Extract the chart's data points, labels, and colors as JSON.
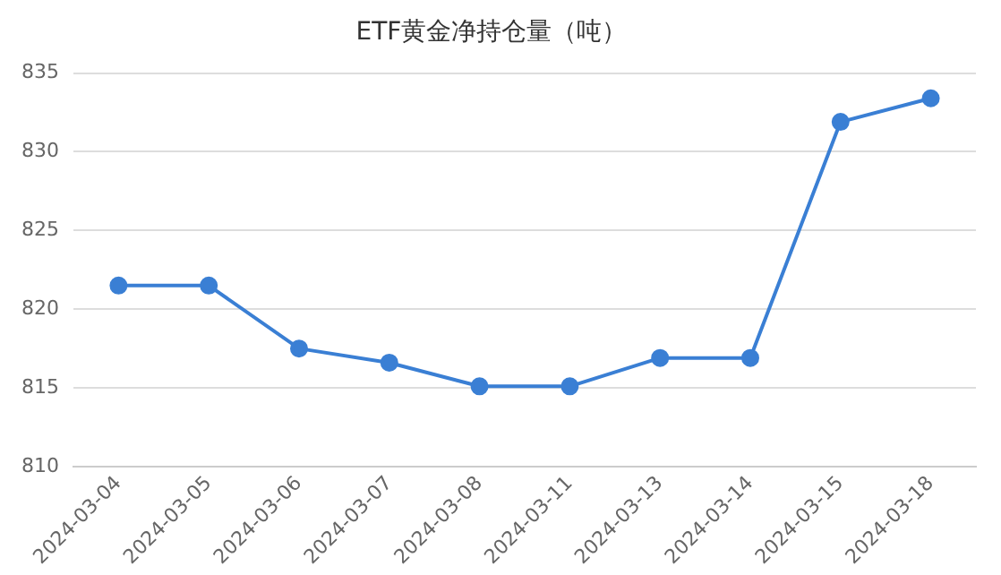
{
  "chart_data": {
    "type": "line",
    "title": "ETF黄金净持仓量（吨）",
    "categories": [
      "2024-03-04",
      "2024-03-05",
      "2024-03-06",
      "2024-03-07",
      "2024-03-08",
      "2024-03-11",
      "2024-03-13",
      "2024-03-14",
      "2024-03-15",
      "2024-03-18"
    ],
    "series": [
      {
        "color": "#3a7fd4",
        "values": [
          821.5,
          821.5,
          817.5,
          816.6,
          815.1,
          815.1,
          816.9,
          816.9,
          831.9,
          833.4
        ]
      }
    ],
    "ylim": [
      810,
      835
    ],
    "yticks": [
      810,
      815,
      820,
      825,
      830,
      835
    ],
    "grid": "y",
    "marker": "circle",
    "line_style": "solid",
    "legend": false
  }
}
